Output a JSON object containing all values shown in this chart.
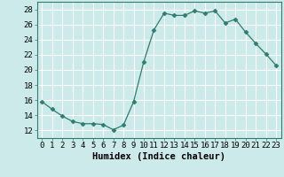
{
  "x": [
    0,
    1,
    2,
    3,
    4,
    5,
    6,
    7,
    8,
    9,
    10,
    11,
    12,
    13,
    14,
    15,
    16,
    17,
    18,
    19,
    20,
    21,
    22,
    23
  ],
  "y": [
    15.8,
    14.8,
    13.9,
    13.2,
    12.9,
    12.9,
    12.8,
    12.1,
    12.7,
    15.8,
    21.1,
    25.3,
    27.5,
    27.2,
    27.2,
    27.8,
    27.5,
    27.8,
    26.2,
    26.7,
    25.0,
    23.5,
    22.1,
    20.6
  ],
  "line_color": "#2e7d6e",
  "marker": "D",
  "marker_size": 2.5,
  "bg_color": "#cceaea",
  "grid_color": "#ffffff",
  "xlabel": "Humidex (Indice chaleur)",
  "xlim": [
    -0.5,
    23.5
  ],
  "ylim": [
    11,
    29
  ],
  "yticks": [
    12,
    14,
    16,
    18,
    20,
    22,
    24,
    26,
    28
  ],
  "xticks": [
    0,
    1,
    2,
    3,
    4,
    5,
    6,
    7,
    8,
    9,
    10,
    11,
    12,
    13,
    14,
    15,
    16,
    17,
    18,
    19,
    20,
    21,
    22,
    23
  ],
  "xlabel_fontsize": 7.5,
  "tick_fontsize": 6.5
}
